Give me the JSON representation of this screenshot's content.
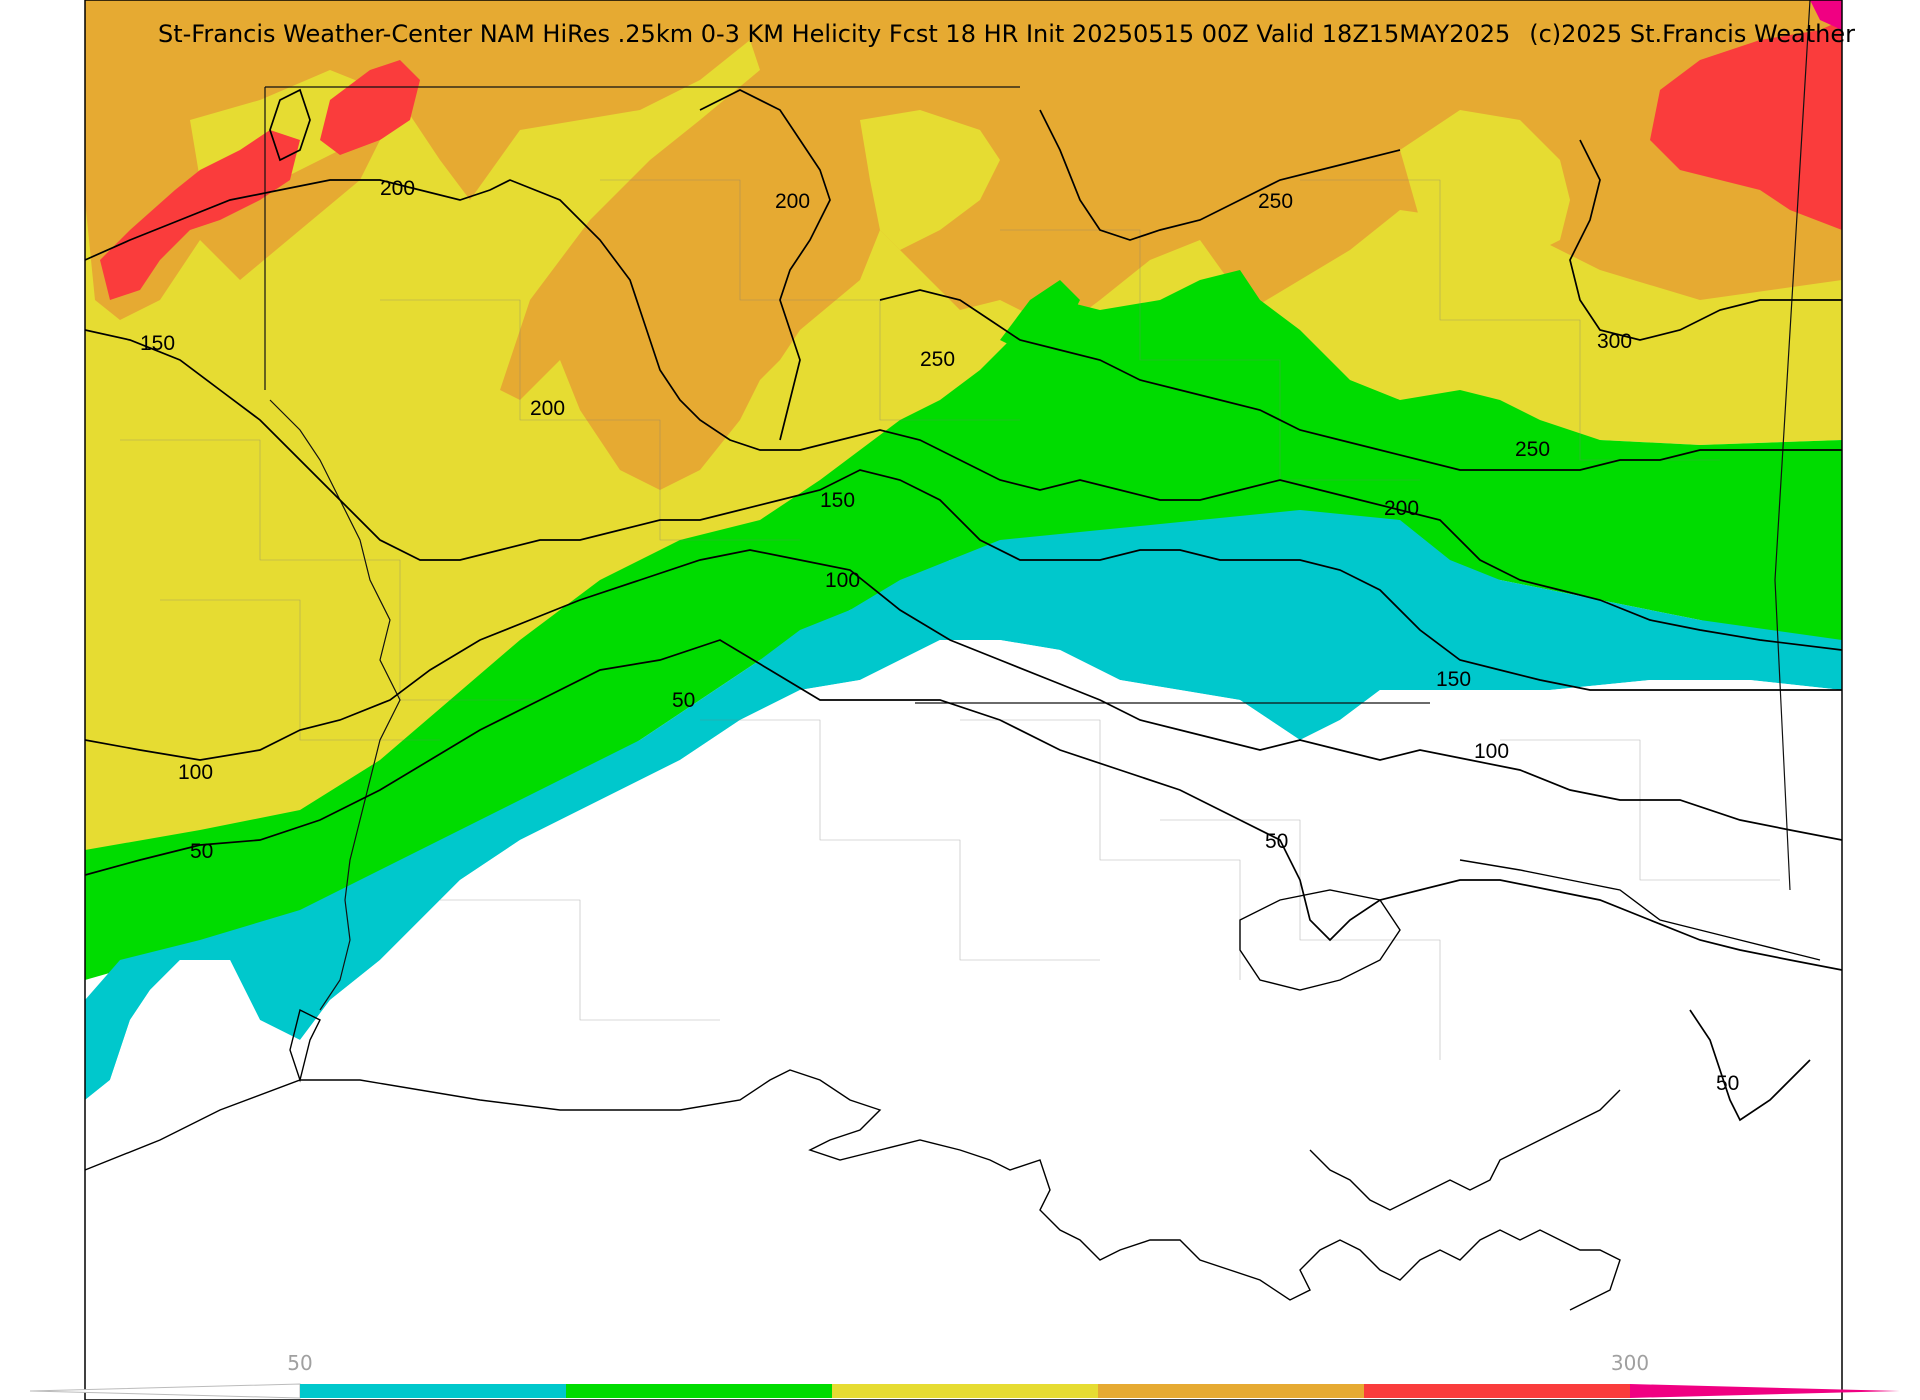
{
  "header": {
    "title": "St-Francis Weather-Center NAM HiRes .25km 0-3 KM Helicity Fcst 18 HR Init 20250515 00Z  Valid 18Z15MAY2025",
    "copyright": "(c)2025 St.Francis Weather"
  },
  "colorbar": {
    "tick_low": "50",
    "tick_high": "300",
    "colors": [
      "#00c8cc",
      "#00dc00",
      "#e6dc32",
      "#e6aa32",
      "#fa3c3c",
      "#f00082"
    ]
  },
  "contour_labels": {
    "c200_nw": "200",
    "c200_n": "200",
    "c200_mid": "200",
    "c250_n": "250",
    "c250_ne": "250",
    "c250_mid": "250",
    "c300_ne": "300",
    "c150_w": "150",
    "c150_mid": "150",
    "c150_se": "150",
    "c200_se": "200",
    "c100_mid": "100",
    "c100_w": "100",
    "c100_se": "100",
    "c50_mid": "50",
    "c50_w": "50",
    "c50_s": "50",
    "c50_se": "50"
  },
  "map_colors": {
    "cyan": "#00c8cc",
    "green": "#00dc00",
    "yellow": "#e6dc32",
    "orange": "#e6aa32",
    "red": "#fa3c3c",
    "magenta": "#f00082"
  }
}
